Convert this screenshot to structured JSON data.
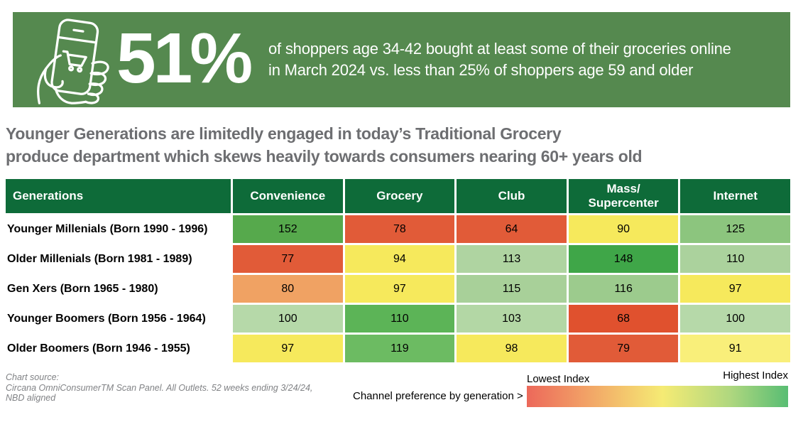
{
  "banner": {
    "bg_color": "#55894F",
    "stat": "51%",
    "description_line1": "of shoppers age 34-42 bought at least some of their groceries online",
    "description_line2": "in March 2024 vs. less than 25% of shoppers age 59 and older",
    "icon": "hand-holding-phone-shopping-cart-icon"
  },
  "title": {
    "line1": "Younger Generations are limitedly engaged in today’s Traditional Grocery",
    "line2": "produce department which skews heavily towards consumers nearing 60+ years old",
    "color": "#6D6E71"
  },
  "chart_data": {
    "type": "heatmap",
    "title": "Younger Generations are limitedly engaged in today’s Traditional Grocery produce department which skews heavily towards consumers nearing 60+ years old",
    "row_header": "Generations",
    "columns": [
      "Convenience",
      "Grocery",
      "Club",
      "Mass/\nSupercenter",
      "Internet"
    ],
    "header_bg": "#0E6B39",
    "rows": [
      {
        "label": "Younger Millenials (Born 1990 - 1996)",
        "values": [
          152,
          78,
          64,
          90,
          125
        ],
        "colors": [
          "#56A94C",
          "#E15B38",
          "#E15B38",
          "#F6E95C",
          "#8CC57E"
        ]
      },
      {
        "label": "Older Millenials (Born 1981 - 1989)",
        "values": [
          77,
          94,
          113,
          148,
          110
        ],
        "colors": [
          "#E15B38",
          "#F6E95C",
          "#AFD4A1",
          "#3FA648",
          "#ABD29D"
        ]
      },
      {
        "label": "Gen Xers (Born 1965 - 1980)",
        "values": [
          80,
          97,
          115,
          116,
          97
        ],
        "colors": [
          "#F0A263",
          "#F6E95C",
          "#A8D099",
          "#9CCB8D",
          "#F6E95C"
        ]
      },
      {
        "label": "Younger Boomers (Born 1956 - 1964)",
        "values": [
          100,
          110,
          103,
          68,
          100
        ],
        "colors": [
          "#B6D9A9",
          "#5CB457",
          "#B3D7A5",
          "#E0512E",
          "#B6D9A9"
        ]
      },
      {
        "label": "Older Boomers (Born 1946 - 1955)",
        "values": [
          97,
          119,
          98,
          79,
          91
        ],
        "colors": [
          "#F6E95C",
          "#6CBB62",
          "#F6E95C",
          "#E15B38",
          "#F9EF7A"
        ]
      }
    ],
    "legend": {
      "note": "Channel preference by generation >",
      "low_label": "Lowest Index",
      "high_label": "Highest Index",
      "gradient": [
        "#EC685A",
        "#F5EB74",
        "#58BD73"
      ]
    }
  },
  "footer": {
    "source_label": "Chart source:",
    "source_line1": "Circana OmniConsumerTM Scan Panel. All Outlets. 52 weeks ending 3/24/24,",
    "source_line2": "NBD aligned"
  }
}
